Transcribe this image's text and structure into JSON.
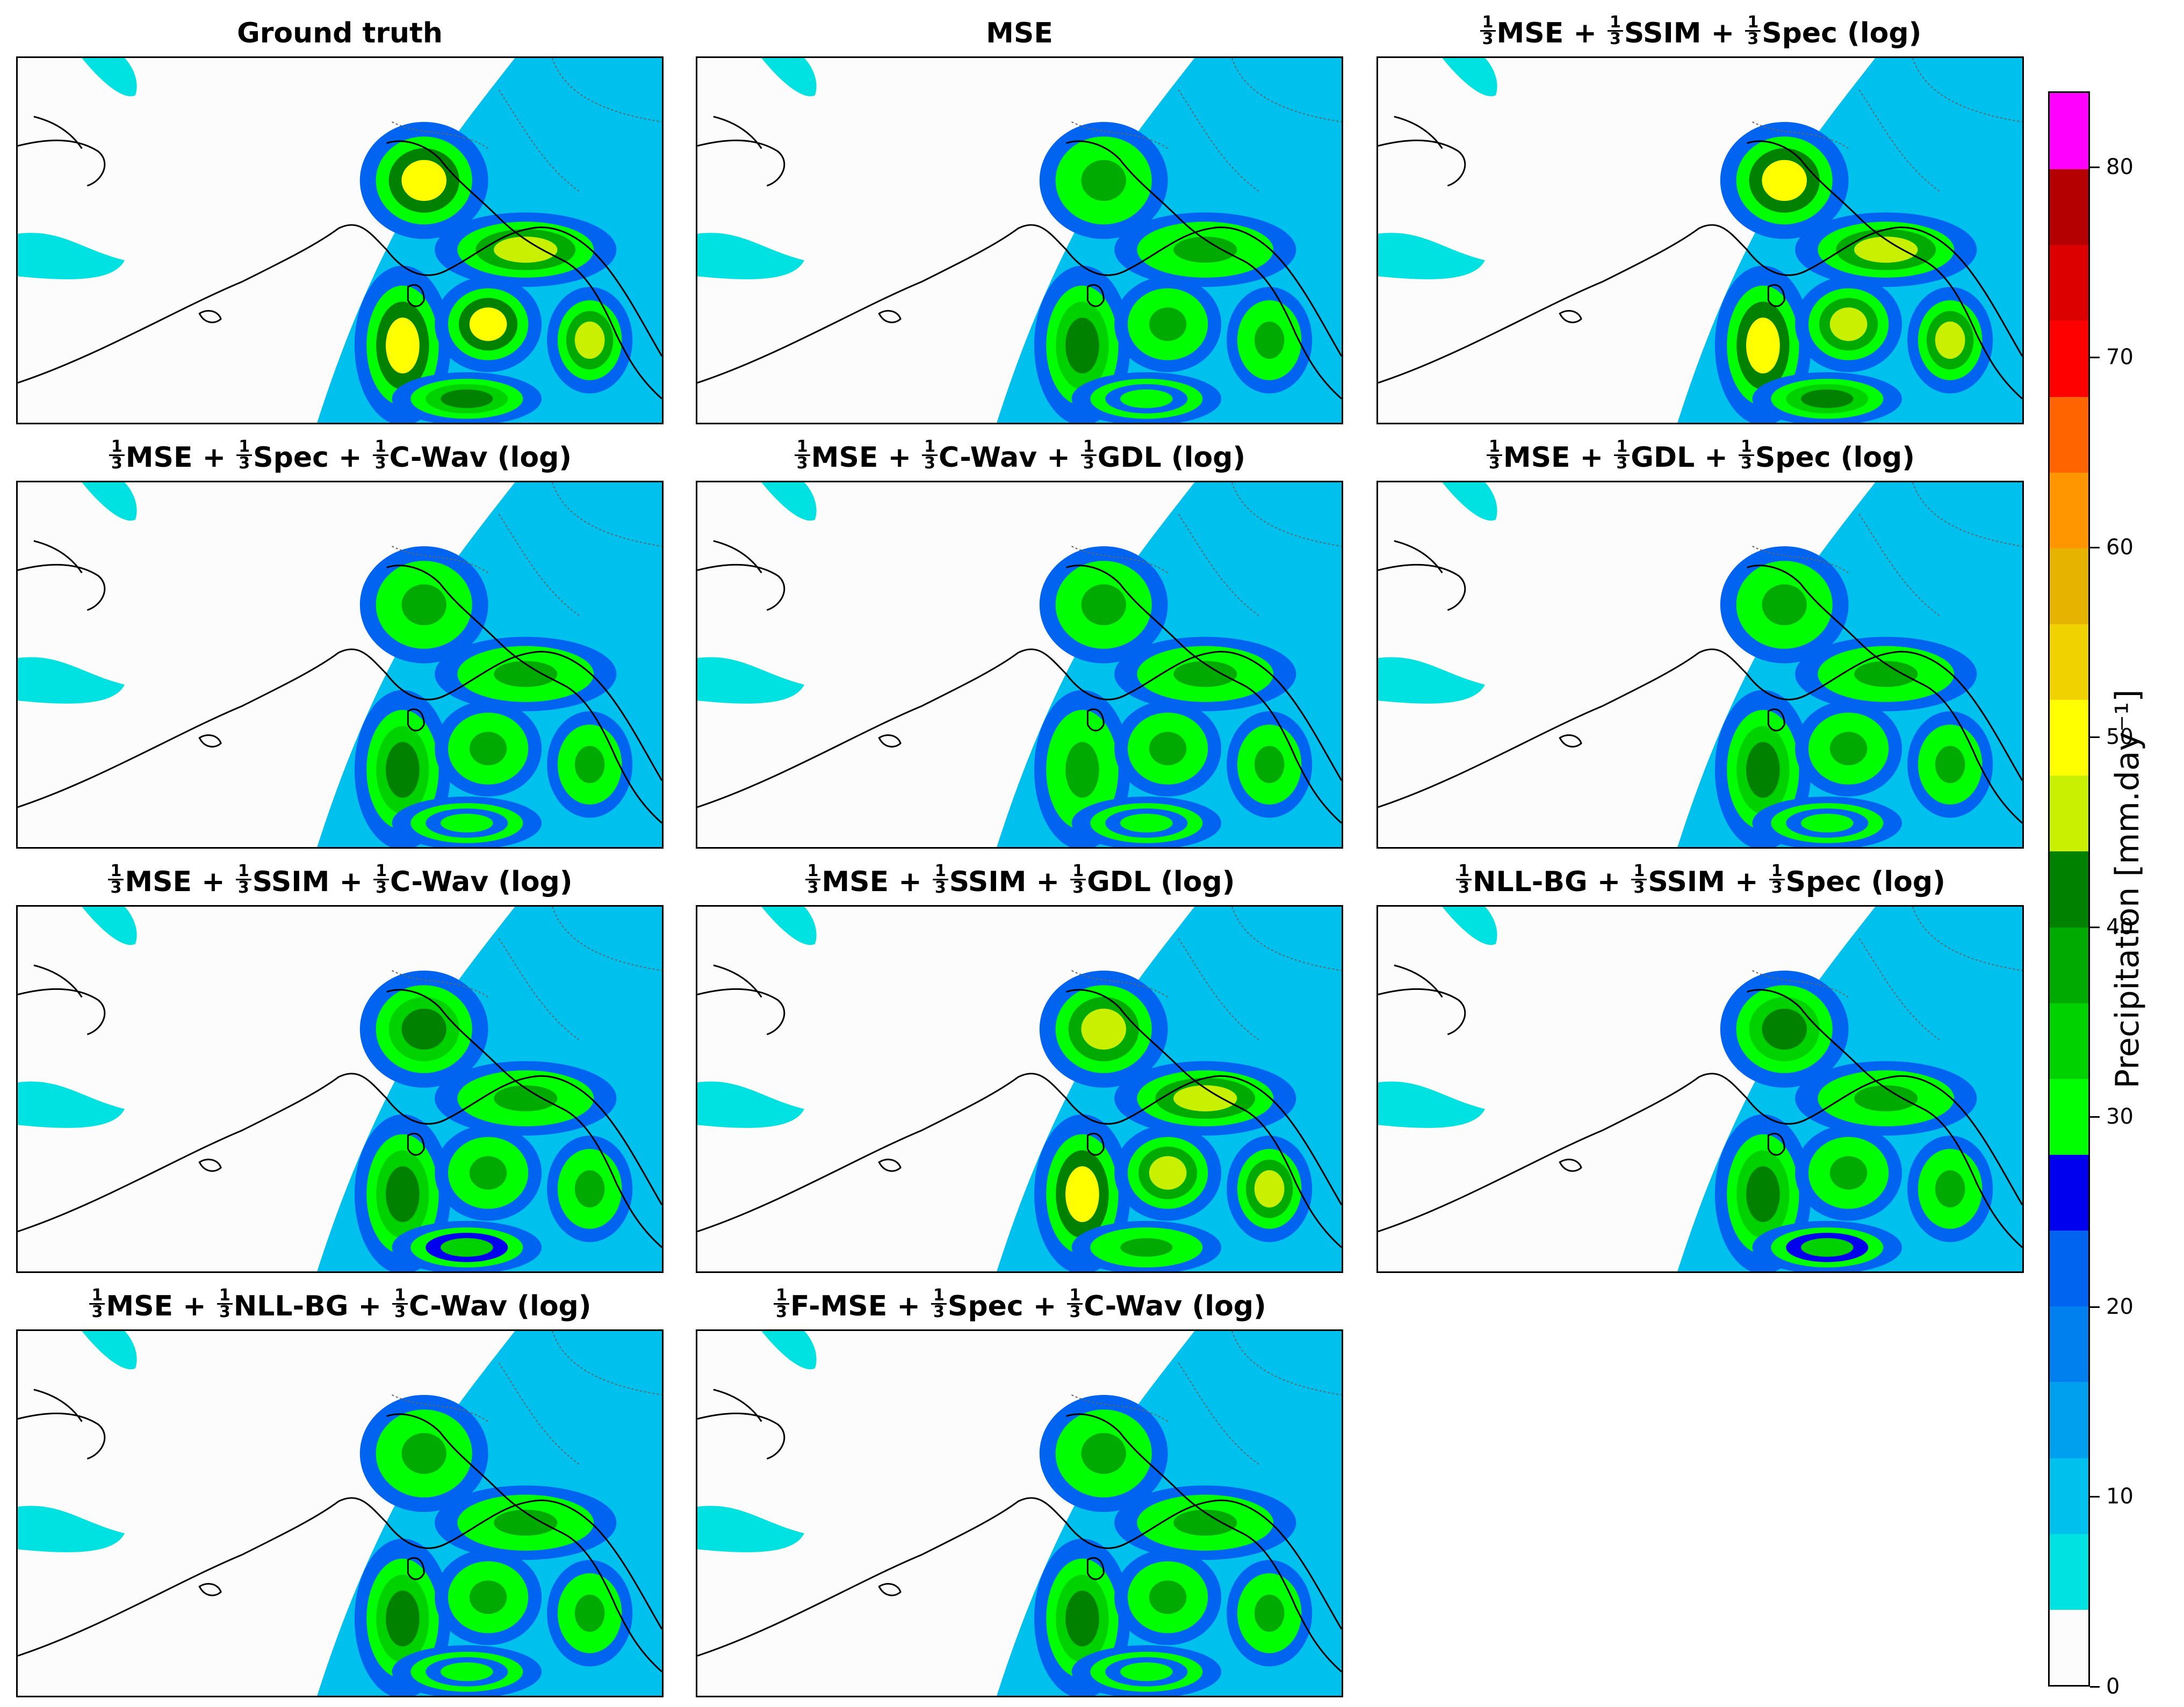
{
  "panels": [
    {
      "title_parts": [
        "Ground truth"
      ]
    },
    {
      "title_parts": [
        "MSE"
      ]
    },
    {
      "title_parts": [
        "§",
        "MSE + ",
        "§",
        "SSIM + ",
        "§",
        "Spec (log)"
      ]
    },
    {
      "title_parts": [
        "§",
        "MSE + ",
        "§",
        "Spec + ",
        "§",
        "C-Wav (log)"
      ]
    },
    {
      "title_parts": [
        "§",
        "MSE + ",
        "§",
        "C-Wav + ",
        "§",
        "GDL (log)"
      ]
    },
    {
      "title_parts": [
        "§",
        "MSE + ",
        "§",
        "GDL + ",
        "§",
        "Spec (log)"
      ]
    },
    {
      "title_parts": [
        "§",
        "MSE + ",
        "§",
        "SSIM + ",
        "§",
        "C-Wav (log)"
      ]
    },
    {
      "title_parts": [
        "§",
        "MSE + ",
        "§",
        "SSIM + ",
        "§",
        "GDL (log)"
      ]
    },
    {
      "title_parts": [
        "§",
        "NLL-BG + ",
        "§",
        "SSIM + ",
        "§",
        "Spec (log)"
      ]
    },
    {
      "title_parts": [
        "§",
        "MSE + ",
        "§",
        "NLL-BG + ",
        "§",
        "C-Wav (log)"
      ]
    },
    {
      "title_parts": [
        "§",
        "F-MSE + ",
        "§",
        "Spec + ",
        "§",
        "C-Wav (log)"
      ]
    }
  ],
  "fraction": {
    "numerator": "1",
    "denominator": "3"
  },
  "colorbar": {
    "label": "Precipitation [mm.day⁻¹]",
    "min": 0,
    "max": 84,
    "ticks": [
      0,
      10,
      20,
      30,
      40,
      50,
      60,
      70,
      80
    ],
    "tick_labels": [
      "0",
      "10",
      "20",
      "30",
      "40",
      "50",
      "60",
      "70",
      "80"
    ],
    "bounds": [
      0,
      4,
      8,
      12,
      16,
      20,
      24,
      28,
      32,
      36,
      40,
      44,
      48,
      52,
      56,
      60,
      64,
      68,
      72,
      76,
      80,
      84
    ],
    "colors": [
      "#fcfcfc",
      "#00e1e1",
      "#00c0ee",
      "#00a0ee",
      "#0080ee",
      "#0064f0",
      "#0000ee",
      "#00ff00",
      "#00d200",
      "#00aa00",
      "#008200",
      "#c8f000",
      "#ffff00",
      "#f0d200",
      "#e6b400",
      "#ff9600",
      "#ff6400",
      "#ff0000",
      "#dc0000",
      "#b40000",
      "#ff00ff",
      "#c878f0",
      "#9650c8"
    ]
  }
}
